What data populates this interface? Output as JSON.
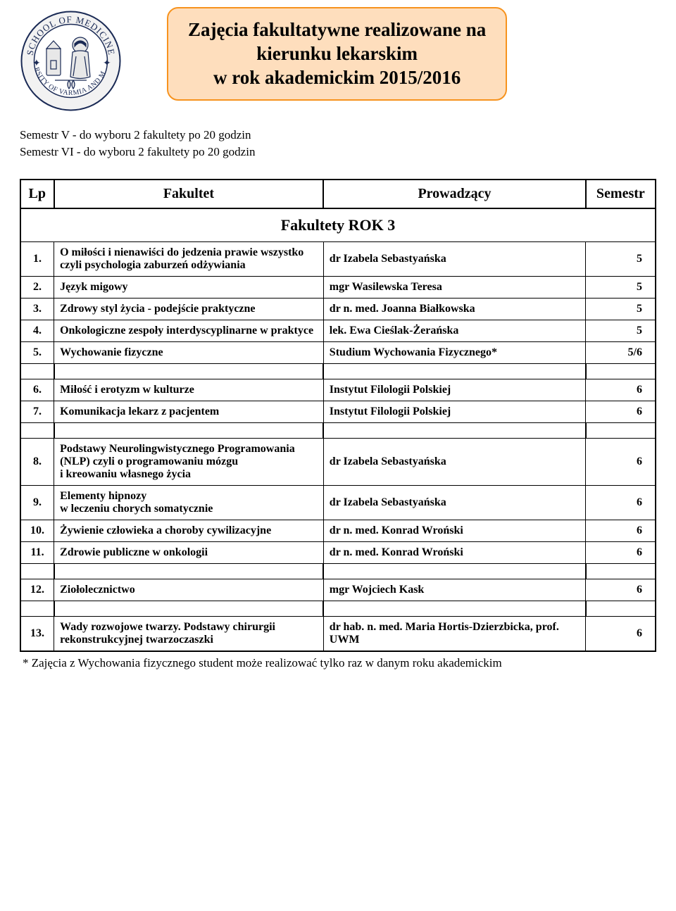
{
  "title": {
    "line1": "Zajęcia fakultatywne realizowane na",
    "line2": "kierunku lekarskim",
    "line3": "w rok akademickim 2015/2016"
  },
  "subinfo": {
    "line1": "Semestr V - do wyboru 2 fakultety po 20 godzin",
    "line2": "Semestr VI - do wyboru 2 fakultety po 20 godzin"
  },
  "table": {
    "caption": "Fakultety   ROK  3",
    "headers": {
      "lp": "Lp",
      "fak": "Fakultet",
      "prow": "Prowadzący",
      "sem": "Semestr"
    },
    "rows": [
      {
        "n": "1.",
        "name": "O miłości i nienawiści do jedzenia prawie wszystko czyli psychologia zaburzeń odżywiania",
        "leader": "dr Izabela Sebastyańska",
        "sem": "5"
      },
      {
        "n": "2.",
        "name": "Język migowy",
        "leader": "mgr Wasilewska Teresa",
        "sem": "5"
      },
      {
        "n": "3.",
        "name": "Zdrowy styl życia - podejście praktyczne",
        "leader": "dr n. med. Joanna Białkowska",
        "sem": "5"
      },
      {
        "n": "4.",
        "name": "Onkologiczne zespoły interdyscyplinarne w praktyce",
        "leader": "lek. Ewa Cieślak-Żerańska",
        "sem": "5"
      },
      {
        "n": "5.",
        "name": "Wychowanie fizyczne",
        "leader": "Studium Wychowania Fizycznego*",
        "sem": "5/6"
      },
      {
        "n": "6.",
        "name": "Miłość i erotyzm w kulturze",
        "leader": "Instytut Filologii Polskiej",
        "sem": "6"
      },
      {
        "n": "7.",
        "name": "Komunikacja lekarz z pacjentem",
        "leader": "Instytut Filologii Polskiej",
        "sem": "6"
      },
      {
        "n": "8.",
        "name": "Podstawy Neurolingwistycznego Programowania (NLP) czyli o programowaniu mózgu\ni kreowaniu własnego życia",
        "leader": "dr Izabela Sebastyańska",
        "sem": "6"
      },
      {
        "n": "9.",
        "name": "Elementy hipnozy\nw leczeniu chorych somatycznie",
        "leader": "dr Izabela Sebastyańska",
        "sem": "6"
      },
      {
        "n": "10.",
        "name": "Żywienie człowieka a choroby cywilizacyjne",
        "leader": "dr n. med. Konrad Wroński",
        "sem": "6"
      },
      {
        "n": "11.",
        "name": "Zdrowie publiczne w onkologii",
        "leader": "dr n. med. Konrad Wroński",
        "sem": "6"
      },
      {
        "n": "12.",
        "name": "Ziołolecznictwo",
        "leader": "mgr Wojciech Kask",
        "sem": "6"
      },
      {
        "n": "13.",
        "name": "Wady rozwojowe twarzy. Podstawy chirurgii rekonstrukcyjnej twarzoczaszki",
        "leader": "dr hab. n. med. Maria Hortis-Dzierzbicka, prof. UWM",
        "sem": "6"
      }
    ]
  },
  "footnote": "* Zajęcia  z Wychowania fizycznego student może realizować tylko raz w danym roku akademickim"
}
